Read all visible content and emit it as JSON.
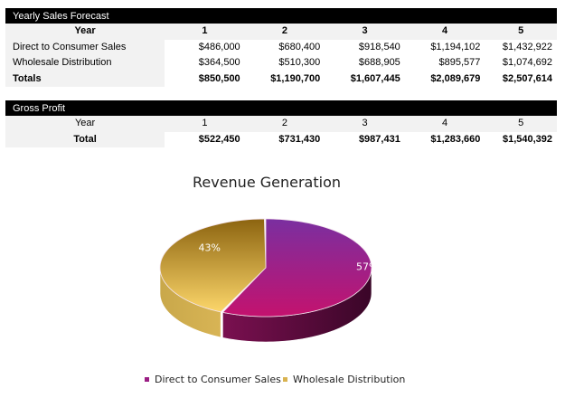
{
  "sales": {
    "title": "Yearly Sales Forecast",
    "header": {
      "label": "Year",
      "years": [
        "1",
        "2",
        "3",
        "4",
        "5"
      ]
    },
    "rows": [
      {
        "label": "Direct to Consumer Sales",
        "values": [
          "$486,000",
          "$680,400",
          "$918,540",
          "$1,194,102",
          "$1,432,922"
        ]
      },
      {
        "label": "Wholesale Distribution",
        "values": [
          "$364,500",
          "$510,300",
          "$688,905",
          "$895,577",
          "$1,074,692"
        ]
      },
      {
        "label": "Totals",
        "values": [
          "$850,500",
          "$1,190,700",
          "$1,607,445",
          "$2,089,679",
          "$2,507,614"
        ]
      }
    ]
  },
  "profit": {
    "title": "Gross Profit",
    "header": {
      "label": "Year",
      "years": [
        "1",
        "2",
        "3",
        "4",
        "5"
      ]
    },
    "total": {
      "label": "Total",
      "values": [
        "$522,450",
        "$731,430",
        "$987,431",
        "$1,283,660",
        "$1,540,392"
      ]
    }
  },
  "chart_data": {
    "type": "pie",
    "title": "Revenue Generation",
    "style": "3d",
    "categories": [
      "Direct to Consumer Sales",
      "Wholesale Distribution"
    ],
    "values": [
      57,
      43
    ],
    "labels": [
      "57%",
      "43%"
    ],
    "colors": [
      "#a0187f",
      "#e8c35a"
    ],
    "legend_position": "bottom"
  }
}
